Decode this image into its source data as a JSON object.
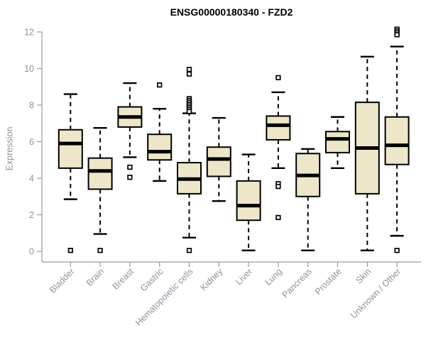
{
  "title": "ENSG00000180340 - FZD2",
  "colors": {
    "box_fill": "#EDE6C8",
    "box_stroke": "#000000",
    "median": "#000000",
    "axis": "#9a9a9a",
    "tick_label": "#8d939b",
    "title_color": "#000000"
  },
  "chart_data": {
    "type": "boxplot",
    "title": "ENSG00000180340 - FZD2",
    "xlabel": "",
    "ylabel": "Expression",
    "ylim": [
      0,
      12
    ],
    "y_ticks": [
      0,
      2,
      4,
      6,
      8,
      10,
      12
    ],
    "grid": false,
    "legend": "none",
    "categories": [
      "Bladder",
      "Brain",
      "Breast",
      "Gastric",
      "Hematopoietic cells",
      "Kidney",
      "Liver",
      "Lung",
      "Pancreas",
      "Prostate",
      "Skin",
      "Unknown / Other"
    ],
    "boxes": [
      {
        "category": "Bladder",
        "whisker_low": 2.85,
        "q1": 4.55,
        "median": 5.9,
        "q3": 6.65,
        "whisker_high": 8.6,
        "outliers": [
          0.05
        ]
      },
      {
        "category": "Brain",
        "whisker_low": 0.95,
        "q1": 3.4,
        "median": 4.4,
        "q3": 5.1,
        "whisker_high": 6.75,
        "outliers": [
          0.05
        ]
      },
      {
        "category": "Breast",
        "whisker_low": 5.15,
        "q1": 6.8,
        "median": 7.35,
        "q3": 7.9,
        "whisker_high": 9.2,
        "outliers": [
          4.6,
          4.05
        ]
      },
      {
        "category": "Gastric",
        "whisker_low": 3.85,
        "q1": 5.0,
        "median": 5.45,
        "q3": 6.4,
        "whisker_high": 7.8,
        "outliers": [
          9.1
        ]
      },
      {
        "category": "Hematopoietic cells",
        "whisker_low": 0.75,
        "q1": 3.15,
        "median": 3.95,
        "q3": 4.85,
        "whisker_high": 7.55,
        "outliers": [
          9.95,
          9.7,
          8.35,
          8.25,
          8.15,
          8.05,
          7.95,
          7.85,
          7.75,
          7.65,
          0.05
        ]
      },
      {
        "category": "Kidney",
        "whisker_low": 2.75,
        "q1": 4.1,
        "median": 5.05,
        "q3": 5.7,
        "whisker_high": 7.3,
        "outliers": []
      },
      {
        "category": "Liver",
        "whisker_low": 0.05,
        "q1": 1.7,
        "median": 2.5,
        "q3": 3.85,
        "whisker_high": 5.3,
        "outliers": []
      },
      {
        "category": "Lung",
        "whisker_low": 4.55,
        "q1": 6.1,
        "median": 6.9,
        "q3": 7.4,
        "whisker_high": 8.7,
        "outliers": [
          9.5,
          3.7,
          3.55,
          1.85
        ]
      },
      {
        "category": "Pancreas",
        "whisker_low": 0.05,
        "q1": 3.0,
        "median": 4.15,
        "q3": 5.35,
        "whisker_high": 5.6,
        "outliers": []
      },
      {
        "category": "Prostate",
        "whisker_low": 4.55,
        "q1": 5.4,
        "median": 6.15,
        "q3": 6.55,
        "whisker_high": 7.35,
        "outliers": []
      },
      {
        "category": "Skin",
        "whisker_low": 0.05,
        "q1": 3.15,
        "median": 5.65,
        "q3": 8.15,
        "whisker_high": 10.65,
        "outliers": []
      },
      {
        "category": "Unknown / Other",
        "whisker_low": 0.85,
        "q1": 4.75,
        "median": 5.8,
        "q3": 7.35,
        "whisker_high": 11.2,
        "outliers": [
          12.15,
          12.05,
          11.95,
          11.85,
          0.05
        ]
      }
    ]
  }
}
